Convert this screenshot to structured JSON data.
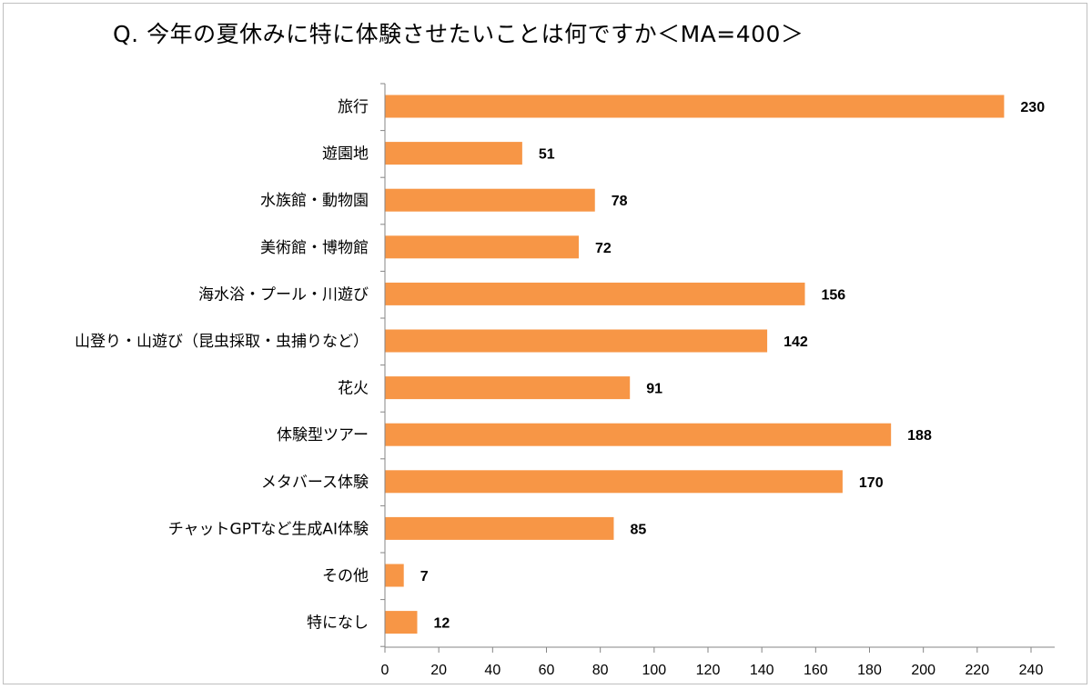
{
  "chart_data": {
    "type": "bar",
    "orientation": "horizontal",
    "title": "Q. 今年の夏休みに特に体験させたいことは何ですか＜MA=400＞",
    "categories": [
      "旅行",
      "遊園地",
      "水族館・動物園",
      "美術館・博物館",
      "海水浴・プール・川遊び",
      "山登り・山遊び（昆虫採取・虫捕りなど）",
      "花火",
      "体験型ツアー",
      "メタバース体験",
      "チャットGPTなど生成AI体験",
      "その他",
      "特になし"
    ],
    "values": [
      230,
      51,
      78,
      72,
      156,
      142,
      91,
      188,
      170,
      85,
      7,
      12
    ],
    "xlim": [
      0,
      240
    ],
    "xticks": [
      0,
      20,
      40,
      60,
      80,
      100,
      120,
      140,
      160,
      180,
      200,
      220,
      240
    ],
    "grid": false,
    "legend": "none",
    "bar_color": "#F79646"
  }
}
